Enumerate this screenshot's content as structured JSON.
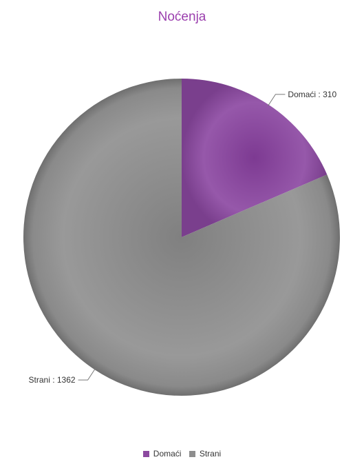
{
  "chart_data": {
    "type": "pie",
    "title": "Noćenja",
    "categories": [
      "Domaći",
      "Strani"
    ],
    "values": [
      310,
      1362
    ],
    "slices": [
      {
        "name": "Domaći",
        "value": 310,
        "label": "Domaći : 310",
        "color": "#8c4aa0"
      },
      {
        "name": "Strani",
        "value": 1362,
        "label": "Strani : 1362",
        "color": "#8e8e8e"
      }
    ],
    "legend_position": "bottom-center",
    "start_angle": "top, clockwise"
  },
  "colors": {
    "title": "#9b3fae",
    "label_text": "#333333"
  }
}
